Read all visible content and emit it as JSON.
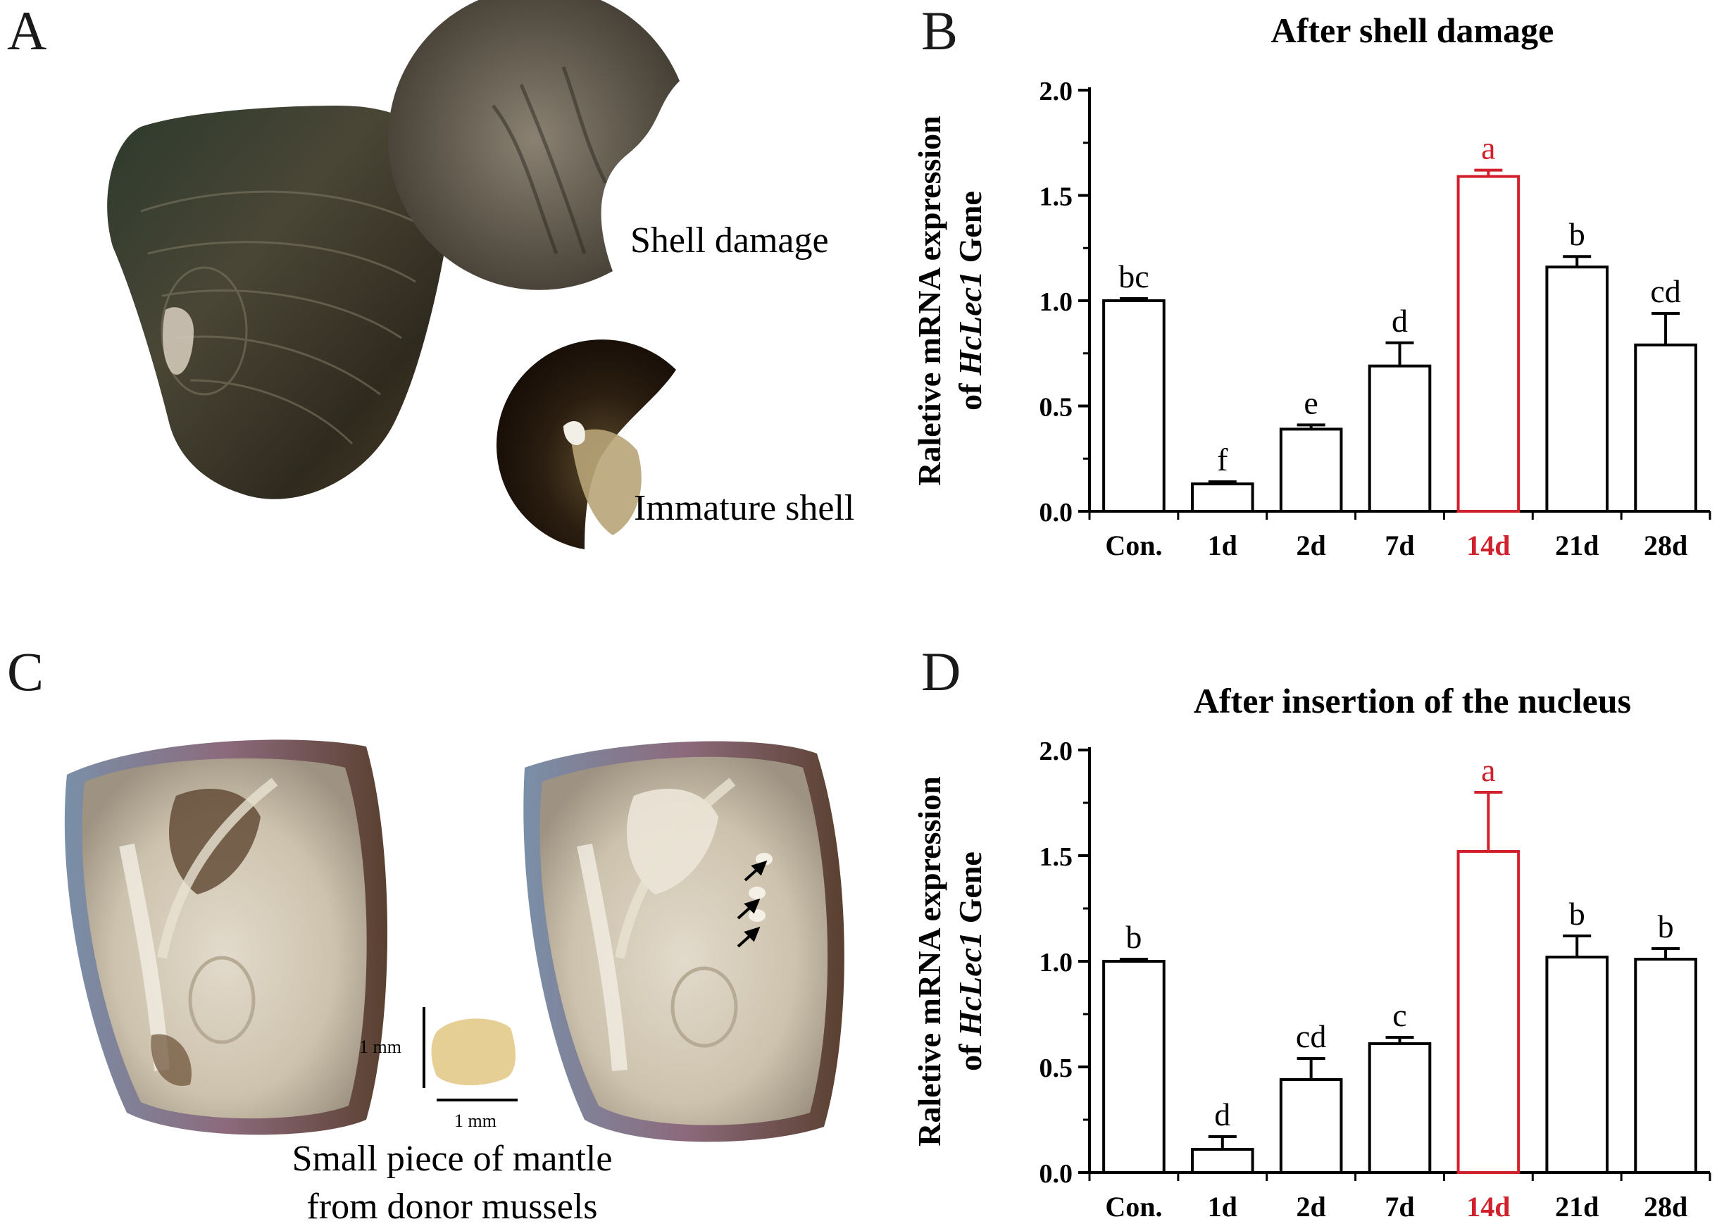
{
  "panels": {
    "a": {
      "letter": "A",
      "label_top": "Shell damage",
      "label_bottom": "Immature shell"
    },
    "c": {
      "letter": "C",
      "scale_label_vertical": "1 mm",
      "scale_label_horizontal": "1 mm",
      "caption_line1": "Small piece of mantle",
      "caption_line2": "from donor mussels"
    }
  },
  "colors": {
    "bar_default": "#000000",
    "bar_highlight": "#d0212d"
  },
  "chart_data": [
    {
      "panel": "B",
      "type": "bar",
      "title": "After shell damage",
      "ylabel_line1": "Raletive mRNA expression",
      "ylabel_line2_pre": "of ",
      "ylabel_line2_italic": "HcLec1",
      "ylabel_line2_post": " Gene",
      "categories": [
        "Con.",
        "1d",
        "2d",
        "7d",
        "14d",
        "21d",
        "28d"
      ],
      "values": [
        1.0,
        0.13,
        0.39,
        0.69,
        1.59,
        1.16,
        0.79
      ],
      "errors": [
        0.01,
        0.01,
        0.02,
        0.11,
        0.03,
        0.05,
        0.15
      ],
      "sig_letters": [
        "bc",
        "f",
        "e",
        "d",
        "a",
        "b",
        "cd"
      ],
      "highlight_index": 4,
      "ylim": [
        0,
        2.0
      ],
      "yticks": [
        "0.0",
        "0.5",
        "1.0",
        "1.5",
        "2.0"
      ]
    },
    {
      "panel": "D",
      "type": "bar",
      "title": "After insertion of the nucleus",
      "ylabel_line1": "Raletive mRNA expression",
      "ylabel_line2_pre": "of ",
      "ylabel_line2_italic": "HcLec1",
      "ylabel_line2_post": " Gene",
      "categories": [
        "Con.",
        "1d",
        "2d",
        "7d",
        "14d",
        "21d",
        "28d"
      ],
      "values": [
        1.0,
        0.11,
        0.44,
        0.61,
        1.52,
        1.02,
        1.01
      ],
      "errors": [
        0.01,
        0.06,
        0.1,
        0.03,
        0.28,
        0.1,
        0.05
      ],
      "sig_letters": [
        "b",
        "d",
        "cd",
        "c",
        "a",
        "b",
        "b"
      ],
      "highlight_index": 4,
      "ylim": [
        0,
        2.0
      ],
      "yticks": [
        "0.0",
        "0.5",
        "1.0",
        "1.5",
        "2.0"
      ]
    }
  ]
}
